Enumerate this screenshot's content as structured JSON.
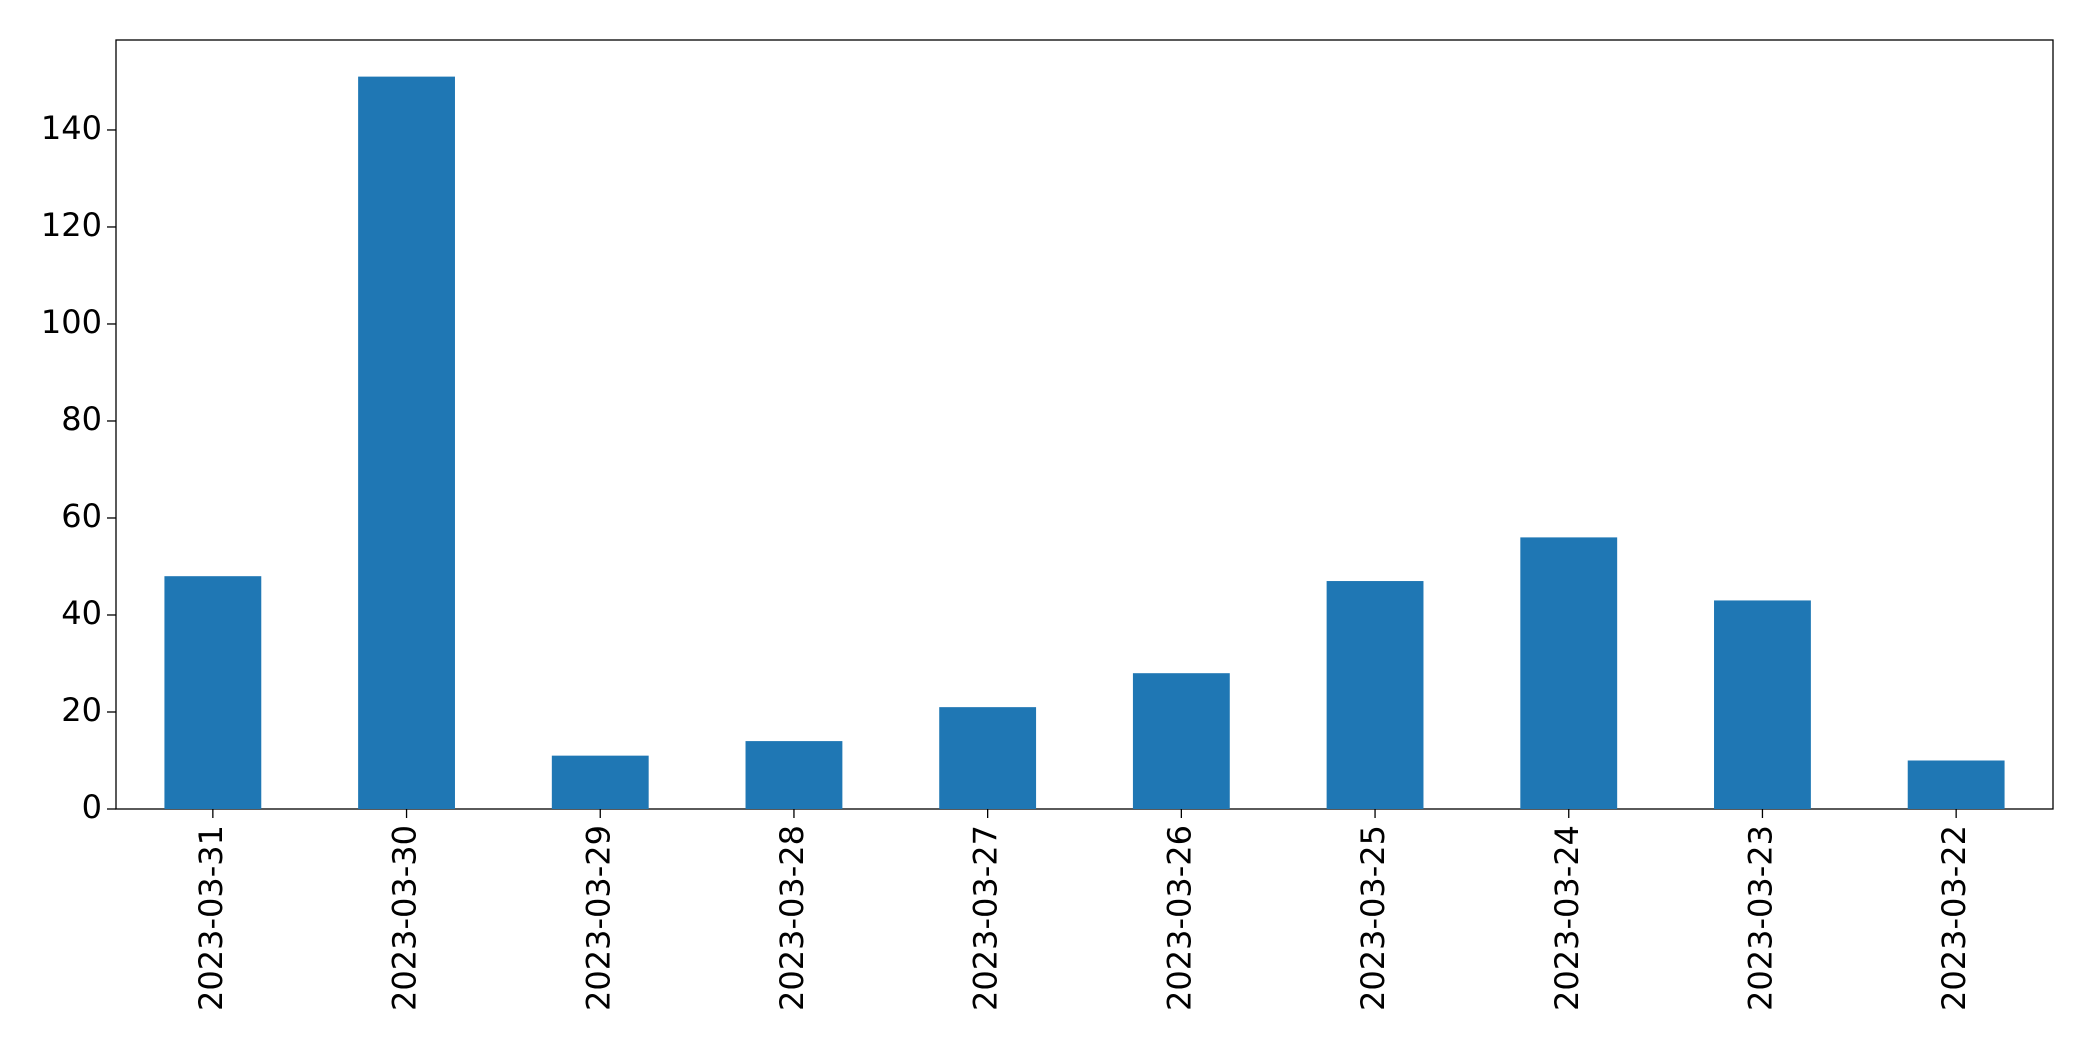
{
  "chart_data": {
    "type": "bar",
    "categories": [
      "2023-03-31",
      "2023-03-30",
      "2023-03-29",
      "2023-03-28",
      "2023-03-27",
      "2023-03-26",
      "2023-03-25",
      "2023-03-24",
      "2023-03-23",
      "2023-03-22"
    ],
    "values": [
      48,
      151,
      11,
      14,
      21,
      28,
      47,
      56,
      43,
      10
    ],
    "color": "#1f77b4",
    "ylim": [
      0,
      158.55
    ],
    "yticks": [
      0,
      20,
      40,
      60,
      80,
      100,
      120,
      140
    ],
    "grid": false
  }
}
